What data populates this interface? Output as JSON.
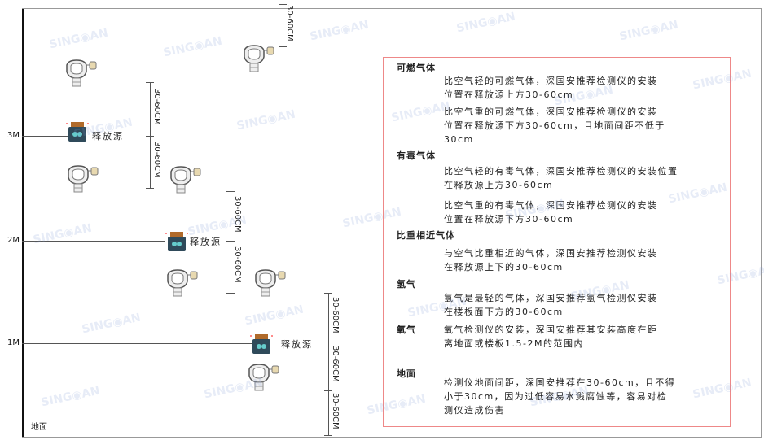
{
  "levels": {
    "m3": "3M",
    "m2": "2M",
    "m1": "1M",
    "ground": "地面"
  },
  "release_source_label": "释放源",
  "dimension_label": "30-60CM",
  "watermark": "SINGOAN 深国安",
  "colors": {
    "box_border": "#e88888",
    "source_body": "#2f4a5a",
    "source_cap": "#b06a2a"
  },
  "guide": {
    "sections": [
      {
        "title": "可燃气体",
        "paragraphs": [
          [
            "比空气轻的可燃气体，深国安推荐检测仪的安装",
            "位置在释放源上方30-60cm"
          ],
          [
            "比空气重的可燃气体，深国安推荐检测仪的安装",
            "位置在释放源下方30-60cm，且地面间距不低于",
            "30cm"
          ]
        ]
      },
      {
        "title": "有毒气体",
        "paragraphs": [
          [
            "比空气轻的有毒气体，深国安推荐检测仪的安装位置",
            "在释放源上方30-60cm"
          ],
          [
            "比空气重的有毒气体，深国安推荐检测仪的安装",
            "位置在释放源下方30-60cm"
          ]
        ]
      },
      {
        "title": "比重相近气体",
        "paragraphs": [
          [
            "与空气比重相近的气体，深国安推荐检测仪安装",
            "在释放源上下的30-60cm"
          ]
        ]
      },
      {
        "title": "氢气",
        "paragraphs": [
          [
            "氢气是最轻的气体，深国安推荐氢气检测仪安装",
            "在楼板面下方的30-60cm"
          ]
        ]
      },
      {
        "title": "氧气",
        "paragraphs": [
          [
            "氧气检测仪的安装，深国安推荐其安装高度在距",
            "离地面或楼板1.5-2M的范围内"
          ]
        ]
      },
      {
        "title": "地面",
        "paragraphs": [
          [
            "检测仪地面间距，深国安推荐在30-60cm，且不得",
            "小于30cm，因为过低容易水溅腐蚀等，容易对检",
            "测仪造成伤害"
          ]
        ]
      }
    ]
  }
}
